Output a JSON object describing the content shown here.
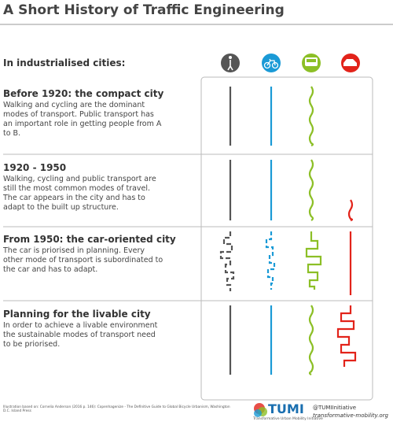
{
  "title": "A Short History of Traffic Engineering",
  "intro": "In industrialised cities:",
  "sections": [
    {
      "heading": "Before 1920: the compact city",
      "body": "Walking and cycling are the dominant modes of transport. Public transport has an important role in getting people from A to B."
    },
    {
      "heading": "1920 - 1950",
      "body": "Walking, cycling and public transport are still the most common modes of travel. The car appears in the city and has to adapt to the built up structure."
    },
    {
      "heading": "From 1950: the car-oriented city",
      "body": "The car is priorised in planning. Every other mode of transport is subordinated to the car and has to adapt."
    },
    {
      "heading": "Planning for the livable city",
      "body": "In order to achieve a livable environment the sustainable modes of transport need to be priorised."
    }
  ],
  "footer": {
    "source": "Illustration based on: Cornelia Anderson (2016 p. 146): Copenhagenize - The Definitive Guide to Global Bicycle Urbanism, Washington D.C. Island Press",
    "logo": "TUMI",
    "logo_sub": "Transformative Urban Mobility Initiative",
    "handle": "@TUMIInitiative",
    "website": "transformative-mobility.org"
  }
}
